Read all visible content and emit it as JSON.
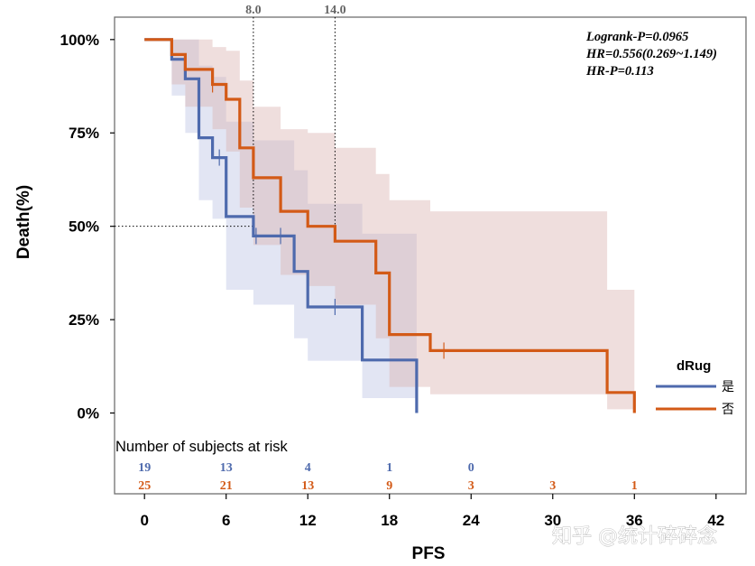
{
  "chart_data": {
    "type": "line",
    "subtype": "kaplan-meier",
    "xlabel": "PFS",
    "ylabel": "Death(%)",
    "xlim": [
      -2.2,
      44.2
    ],
    "ylim": [
      -0.035,
      1.06
    ],
    "x_ticks": [
      0,
      6,
      12,
      18,
      24,
      30,
      36,
      42
    ],
    "y_ticks": [
      {
        "value": 1.0,
        "label": "100%"
      },
      {
        "value": 0.75,
        "label": "75%"
      },
      {
        "value": 0.5,
        "label": "50%"
      },
      {
        "value": 0.25,
        "label": "25%"
      },
      {
        "value": 0.0,
        "label": "0%"
      }
    ],
    "stats": {
      "line1": "Logrank-P=0.0965",
      "line2": "HR=0.556(0.269~1.149)",
      "line3": "HR-P=0.113"
    },
    "median_lines": [
      {
        "x": 8.0,
        "label": "8.0"
      },
      {
        "x": 14.0,
        "label": "14.0"
      }
    ],
    "median_y": 0.5,
    "legend": {
      "title": "dRug",
      "position": "right"
    },
    "series": [
      {
        "name": "是",
        "color": "#4e6aad",
        "band_color": "#b9c0e2",
        "steps": [
          [
            0,
            1.0
          ],
          [
            2,
            0.947
          ],
          [
            3,
            0.895
          ],
          [
            4,
            0.737
          ],
          [
            5,
            0.684
          ],
          [
            6,
            0.526
          ],
          [
            8,
            0.474
          ],
          [
            11,
            0.379
          ],
          [
            12,
            0.284
          ],
          [
            16,
            0.142
          ],
          [
            20,
            0.0
          ]
        ],
        "lower": [
          [
            2,
            0.85
          ],
          [
            3,
            0.75
          ],
          [
            4,
            0.57
          ],
          [
            5,
            0.52
          ],
          [
            6,
            0.33
          ],
          [
            8,
            0.29
          ],
          [
            11,
            0.2
          ],
          [
            12,
            0.14
          ],
          [
            16,
            0.04
          ],
          [
            20,
            0.04
          ]
        ],
        "upper": [
          [
            2,
            1.0
          ],
          [
            3,
            1.0
          ],
          [
            4,
            0.93
          ],
          [
            5,
            0.9
          ],
          [
            6,
            0.78
          ],
          [
            8,
            0.73
          ],
          [
            11,
            0.65
          ],
          [
            12,
            0.56
          ],
          [
            16,
            0.48
          ],
          [
            20,
            0.48
          ]
        ],
        "censors": [
          [
            5.5,
            0.684
          ],
          [
            8.2,
            0.474
          ],
          [
            10,
            0.474
          ],
          [
            14,
            0.284
          ]
        ]
      },
      {
        "name": "否",
        "color": "#d35a17",
        "band_color": "#d9b0ae",
        "steps": [
          [
            0,
            1.0
          ],
          [
            2,
            0.96
          ],
          [
            3,
            0.92
          ],
          [
            5,
            0.88
          ],
          [
            6,
            0.84
          ],
          [
            7,
            0.71
          ],
          [
            8,
            0.63
          ],
          [
            10,
            0.54
          ],
          [
            12,
            0.5
          ],
          [
            14,
            0.46
          ],
          [
            17,
            0.375
          ],
          [
            18,
            0.21
          ],
          [
            21,
            0.167
          ],
          [
            34,
            0.055
          ],
          [
            36,
            0.0
          ]
        ],
        "lower": [
          [
            2,
            0.88
          ],
          [
            3,
            0.82
          ],
          [
            5,
            0.76
          ],
          [
            6,
            0.7
          ],
          [
            7,
            0.55
          ],
          [
            8,
            0.45
          ],
          [
            10,
            0.37
          ],
          [
            12,
            0.34
          ],
          [
            14,
            0.29
          ],
          [
            17,
            0.2
          ],
          [
            18,
            0.07
          ],
          [
            21,
            0.05
          ],
          [
            34,
            0.01
          ],
          [
            36,
            0.01
          ]
        ],
        "upper": [
          [
            2,
            1.0
          ],
          [
            3,
            1.0
          ],
          [
            5,
            0.98
          ],
          [
            6,
            0.97
          ],
          [
            7,
            0.89
          ],
          [
            8,
            0.82
          ],
          [
            10,
            0.76
          ],
          [
            12,
            0.75
          ],
          [
            14,
            0.71
          ],
          [
            17,
            0.64
          ],
          [
            18,
            0.57
          ],
          [
            21,
            0.54
          ],
          [
            34,
            0.33
          ],
          [
            36,
            0.33
          ]
        ],
        "censors": [
          [
            5,
            0.88
          ],
          [
            22,
            0.167
          ]
        ]
      }
    ],
    "risk_table": {
      "title": "Number of subjects at risk",
      "times": [
        0,
        6,
        12,
        18,
        24,
        30,
        36
      ],
      "rows": [
        {
          "name": "是",
          "color": "#4e6aad",
          "values": [
            "19",
            "13",
            "4",
            "1",
            "0",
            "",
            ""
          ]
        },
        {
          "name": "否",
          "color": "#d35a17",
          "values": [
            "25",
            "21",
            "13",
            "9",
            "3",
            "3",
            "1"
          ]
        }
      ]
    }
  },
  "watermark": "知乎 @统计碎碎念"
}
